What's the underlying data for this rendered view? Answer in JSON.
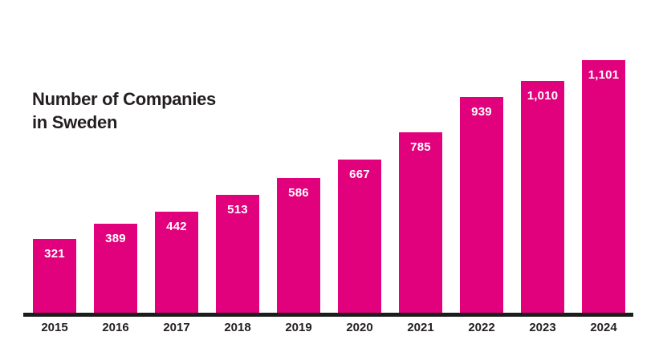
{
  "title": "Number of Companies in Sweden",
  "colors": {
    "bar": "#e2017c",
    "axis": "#1c1c1c",
    "title_text": "#231f20",
    "year_label_text": "#231f20",
    "value_label_text": "#ffffff",
    "background": "#ffffff"
  },
  "chart_data": {
    "type": "bar",
    "title": "Number of Companies in Sweden",
    "categories": [
      "2015",
      "2016",
      "2017",
      "2018",
      "2019",
      "2020",
      "2021",
      "2022",
      "2023",
      "2024"
    ],
    "values": [
      321,
      389,
      442,
      513,
      586,
      667,
      785,
      939,
      1010,
      1101
    ],
    "value_labels": [
      "321",
      "389",
      "442",
      "513",
      "586",
      "667",
      "785",
      "939",
      "1,010",
      "1,101"
    ],
    "xlabel": "",
    "ylabel": "",
    "ylim": [
      0,
      1101
    ],
    "grid": false,
    "legend": false,
    "value_label_position": "inside-top",
    "bar_color": "#e2017c"
  }
}
